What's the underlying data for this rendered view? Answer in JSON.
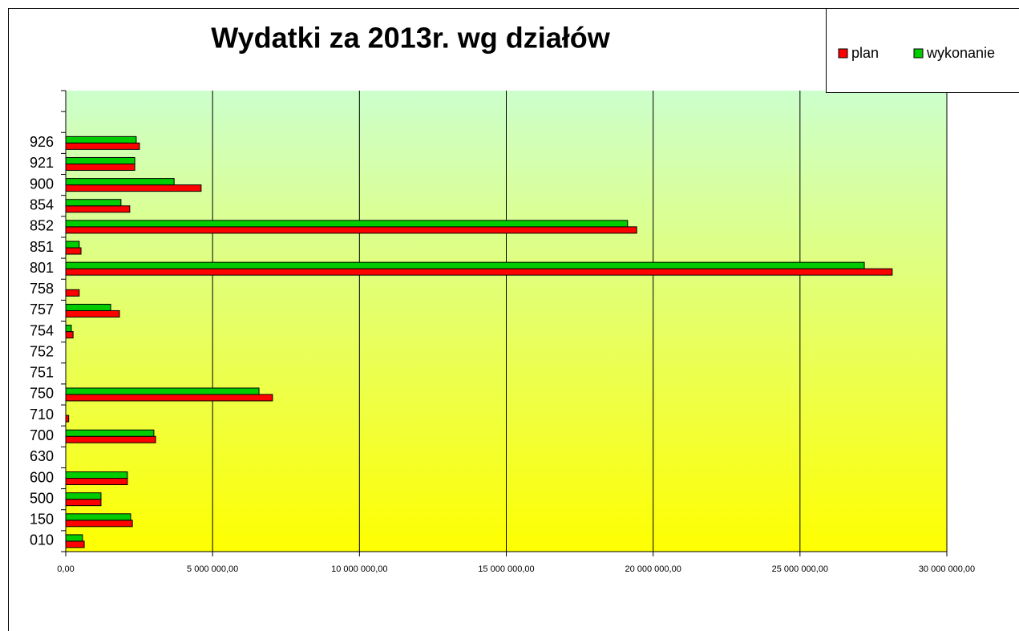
{
  "chart_data": {
    "type": "bar",
    "orientation": "horizontal",
    "title": "Wydatki za 2013r. wg działów",
    "categories": [
      "010",
      "150",
      "500",
      "600",
      "630",
      "700",
      "710",
      "750",
      "751",
      "752",
      "754",
      "757",
      "758",
      "801",
      "851",
      "852",
      "854",
      "900",
      "921",
      "926",
      null,
      null
    ],
    "series": [
      {
        "name": "plan",
        "color": "#ff0000",
        "values": [
          630000,
          2270000,
          1200000,
          2100000,
          0,
          3060000,
          100000,
          7040000,
          0,
          0,
          250000,
          1830000,
          460000,
          28140000,
          520000,
          19440000,
          2180000,
          4610000,
          2350000,
          2510000,
          null,
          null
        ]
      },
      {
        "name": "wykonanie",
        "color": "#00cc00",
        "values": [
          570000,
          2210000,
          1200000,
          2100000,
          0,
          3000000,
          0,
          6580000,
          0,
          0,
          190000,
          1530000,
          0,
          27190000,
          460000,
          19130000,
          1880000,
          3690000,
          2350000,
          2400000,
          null,
          null
        ]
      }
    ],
    "xlim": [
      0,
      30000000
    ],
    "xticks": [
      {
        "value": 0,
        "label": "0,00"
      },
      {
        "value": 5000000,
        "label": "5 000 000,00"
      },
      {
        "value": 10000000,
        "label": "10 000 000,00"
      },
      {
        "value": 15000000,
        "label": "15 000 000,00"
      },
      {
        "value": 20000000,
        "label": "20 000 000,00"
      },
      {
        "value": 25000000,
        "label": "25 000 000,00"
      },
      {
        "value": 30000000,
        "label": "30 000 000,00"
      }
    ],
    "grid": true,
    "legend": "top-right"
  }
}
